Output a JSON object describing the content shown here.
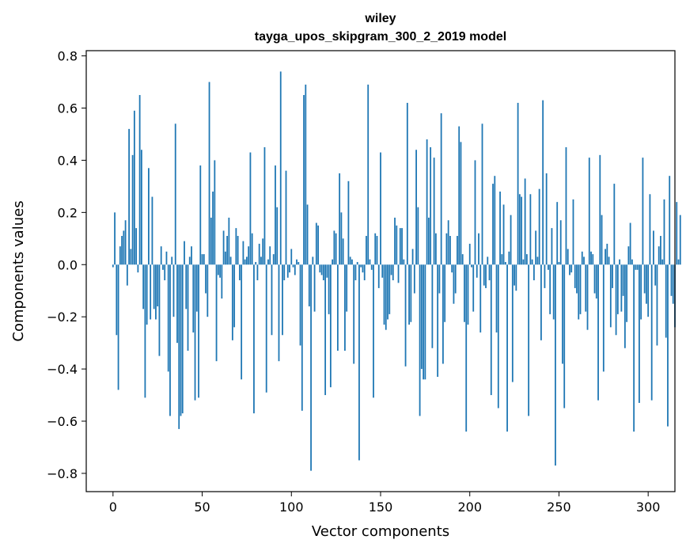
{
  "chart_data": {
    "type": "bar",
    "title": "wiley",
    "subtitle": "tayga_upos_skipgram_300_2_2019 model",
    "xlabel": "Vector components",
    "ylabel": "Components values",
    "xlim": [
      -15,
      315
    ],
    "ylim": [
      -0.87,
      0.82
    ],
    "xticks": [
      0,
      50,
      100,
      150,
      200,
      250,
      300
    ],
    "xtick_labels": [
      "0",
      "50",
      "100",
      "150",
      "200",
      "250",
      "300"
    ],
    "yticks": [
      -0.8,
      -0.6,
      -0.4,
      -0.2,
      0.0,
      0.2,
      0.4,
      0.6,
      0.8
    ],
    "ytick_labels": [
      "−0.8",
      "−0.6",
      "−0.4",
      "−0.2",
      "0.0",
      "0.2",
      "0.4",
      "0.6",
      "0.8"
    ],
    "grid": false,
    "bar_color": "#1f77b4",
    "categories_start": 0,
    "values": [
      -0.01,
      0.2,
      -0.27,
      -0.48,
      0.07,
      0.11,
      0.13,
      0.17,
      -0.08,
      0.52,
      0.06,
      0.42,
      0.59,
      0.14,
      -0.03,
      0.65,
      0.44,
      -0.17,
      -0.51,
      -0.23,
      0.37,
      -0.21,
      0.26,
      -0.17,
      -0.21,
      -0.16,
      -0.35,
      0.07,
      -0.02,
      -0.06,
      0.05,
      -0.41,
      -0.58,
      0.03,
      -0.2,
      0.54,
      -0.3,
      -0.63,
      -0.58,
      -0.57,
      0.09,
      -0.17,
      -0.33,
      0.03,
      0.07,
      -0.26,
      -0.52,
      -0.18,
      -0.51,
      0.38,
      0.04,
      0.04,
      -0.11,
      -0.2,
      0.7,
      0.18,
      0.28,
      0.4,
      -0.37,
      -0.04,
      -0.05,
      -0.13,
      0.13,
      0.05,
      0.11,
      0.18,
      0.03,
      -0.29,
      -0.24,
      0.14,
      0.11,
      -0.06,
      -0.44,
      0.09,
      0.02,
      0.03,
      0.07,
      0.43,
      0.12,
      -0.57,
      0.01,
      -0.06,
      0.08,
      0.03,
      0.1,
      0.45,
      -0.49,
      0.02,
      0.07,
      -0.27,
      0.04,
      0.38,
      0.22,
      -0.37,
      0.74,
      -0.27,
      -0.06,
      0.36,
      -0.05,
      -0.03,
      0.06,
      -0.01,
      -0.04,
      0.02,
      0.01,
      -0.31,
      -0.56,
      0.65,
      0.69,
      0.23,
      -0.16,
      -0.79,
      0.03,
      -0.18,
      0.16,
      0.15,
      -0.03,
      -0.04,
      -0.06,
      -0.5,
      -0.05,
      -0.19,
      -0.47,
      0.02,
      0.13,
      0.12,
      -0.33,
      0.35,
      0.2,
      0.1,
      -0.33,
      -0.18,
      0.32,
      0.03,
      0.02,
      -0.38,
      -0.06,
      0.01,
      -0.75,
      -0.01,
      -0.03,
      -0.06,
      0.11,
      0.69,
      0.02,
      -0.02,
      -0.51,
      0.12,
      0.11,
      -0.09,
      0.43,
      -0.05,
      -0.23,
      -0.25,
      -0.21,
      -0.19,
      -0.04,
      -0.06,
      0.18,
      0.15,
      -0.07,
      0.14,
      0.14,
      0.02,
      -0.39,
      0.62,
      -0.23,
      -0.22,
      0.06,
      -0.11,
      0.44,
      0.22,
      -0.58,
      -0.4,
      -0.44,
      -0.44,
      0.48,
      0.18,
      0.45,
      -0.32,
      0.41,
      0.12,
      -0.43,
      -0.11,
      0.58,
      -0.38,
      -0.22,
      0.12,
      0.17,
      0.11,
      -0.03,
      -0.15,
      -0.11,
      0.11,
      0.53,
      0.47,
      0.04,
      -0.22,
      -0.64,
      -0.23,
      0.08,
      -0.01,
      -0.18,
      0.4,
      -0.05,
      0.12,
      -0.26,
      0.54,
      -0.08,
      -0.09,
      0.03,
      -0.06,
      -0.5,
      0.31,
      0.34,
      -0.26,
      -0.55,
      0.28,
      0.04,
      0.23,
      0.01,
      -0.64,
      0.05,
      0.19,
      -0.45,
      -0.08,
      -0.1,
      0.62,
      0.27,
      0.26,
      0.02,
      0.33,
      0.04,
      -0.58,
      0.27,
      0.02,
      -0.06,
      0.13,
      0.03,
      0.29,
      -0.29,
      0.63,
      -0.09,
      0.35,
      -0.02,
      -0.19,
      0.14,
      -0.21,
      -0.77,
      0.24,
      0.01,
      0.17,
      -0.38,
      -0.55,
      0.45,
      0.06,
      -0.04,
      -0.03,
      0.25,
      -0.09,
      -0.11,
      -0.21,
      -0.19,
      0.05,
      0.03,
      -0.18,
      -0.25,
      0.41,
      0.05,
      0.04,
      -0.11,
      -0.13,
      -0.52,
      0.42,
      0.19,
      -0.41,
      0.06,
      0.08,
      0.03,
      -0.24,
      -0.09,
      0.31,
      -0.27,
      -0.19,
      0.02,
      -0.18,
      -0.12,
      -0.32,
      -0.22,
      0.07,
      0.16,
      0.02,
      -0.64,
      -0.02,
      -0.02,
      -0.53,
      -0.21,
      0.41,
      -0.11,
      -0.15,
      -0.2,
      0.27,
      -0.52,
      0.13,
      -0.08,
      -0.31,
      0.07,
      0.11,
      0.02,
      0.25,
      -0.28,
      -0.62,
      0.34,
      -0.12,
      -0.15,
      -0.24,
      0.24,
      0.02,
      0.19
    ]
  }
}
